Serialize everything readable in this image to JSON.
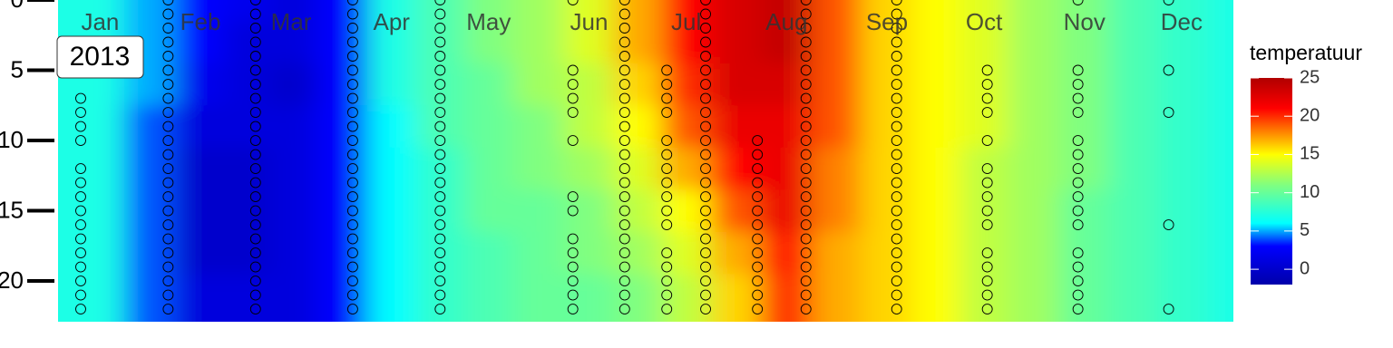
{
  "chart_data": {
    "type": "heatmap",
    "panel_label": "2013",
    "legend_title": "temperatuur",
    "xlim": [
      2,
      365
    ],
    "xticks": [
      {
        "value": 15,
        "label": "Jan"
      },
      {
        "value": 46,
        "label": "Feb"
      },
      {
        "value": 74,
        "label": "Mar"
      },
      {
        "value": 105,
        "label": "Apr"
      },
      {
        "value": 135,
        "label": "May"
      },
      {
        "value": 166,
        "label": "Jun"
      },
      {
        "value": 196,
        "label": "Jul"
      },
      {
        "value": 227,
        "label": "Aug"
      },
      {
        "value": 258,
        "label": "Sep"
      },
      {
        "value": 288,
        "label": "Oct"
      },
      {
        "value": 319,
        "label": "Nov"
      },
      {
        "value": 349,
        "label": "Dec"
      }
    ],
    "ylim": [
      0,
      22.9
    ],
    "y_reversed": true,
    "yticks": [
      0,
      5,
      10,
      15,
      20
    ],
    "clim": [
      -2,
      25
    ],
    "cticks": [
      0,
      5,
      10,
      15,
      20,
      25
    ],
    "color_stops": [
      {
        "value": -2,
        "color": "#0000aa"
      },
      {
        "value": 3,
        "color": "#0000ff"
      },
      {
        "value": 6,
        "color": "#00ffff"
      },
      {
        "value": 11,
        "color": "#80ff80"
      },
      {
        "value": 15,
        "color": "#ffff00"
      },
      {
        "value": 18,
        "color": "#ff8000"
      },
      {
        "value": 21,
        "color": "#ff0000"
      },
      {
        "value": 25,
        "color": "#b00000"
      }
    ],
    "x": [
      2,
      15,
      30,
      46,
      60,
      74,
      90,
      105,
      120,
      135,
      150,
      166,
      181,
      196,
      211,
      227,
      242,
      258,
      273,
      288,
      303,
      319,
      334,
      349,
      365
    ],
    "y": [
      0,
      3,
      6,
      9,
      12,
      15,
      18,
      21
    ],
    "z": [
      [
        7,
        7,
        7,
        7,
        7,
        7,
        7,
        7
      ],
      [
        7,
        7,
        7,
        7,
        7,
        7,
        7,
        7
      ],
      [
        5,
        5,
        5,
        4,
        4,
        4,
        4,
        4
      ],
      [
        3,
        3,
        2,
        1,
        0,
        0,
        0,
        1
      ],
      [
        2,
        1,
        1,
        1,
        0,
        0,
        0,
        1
      ],
      [
        1,
        1,
        0,
        1,
        1,
        1,
        1,
        1
      ],
      [
        3,
        3,
        3,
        3,
        3,
        3,
        3,
        3
      ],
      [
        7,
        7,
        7,
        6,
        6,
        6,
        6,
        6
      ],
      [
        9,
        9,
        9,
        9,
        8,
        8,
        8,
        8
      ],
      [
        11,
        11,
        10,
        10,
        10,
        10,
        9,
        9
      ],
      [
        12,
        12,
        12,
        11,
        11,
        10,
        10,
        10
      ],
      [
        14,
        14,
        13,
        13,
        12,
        11,
        11,
        10
      ],
      [
        17,
        17,
        16,
        15,
        14,
        13,
        12,
        11
      ],
      [
        21,
        21,
        20,
        19,
        17,
        15,
        14,
        13
      ],
      [
        23,
        23,
        23,
        22,
        21,
        19,
        17,
        16
      ],
      [
        24,
        24,
        23,
        22,
        22,
        22,
        21,
        20
      ],
      [
        19,
        19,
        19,
        19,
        18,
        18,
        17,
        17
      ],
      [
        16,
        16,
        16,
        16,
        16,
        16,
        16,
        16
      ],
      [
        15,
        15,
        15,
        15,
        15,
        15,
        15,
        15
      ],
      [
        14,
        14,
        14,
        14,
        13,
        13,
        13,
        13
      ],
      [
        12,
        12,
        12,
        12,
        12,
        12,
        12,
        12
      ],
      [
        11,
        11,
        11,
        11,
        11,
        10,
        10,
        10
      ],
      [
        9,
        9,
        9,
        9,
        9,
        9,
        9,
        9
      ],
      [
        8,
        8,
        8,
        8,
        8,
        8,
        8,
        8
      ],
      [
        7,
        7,
        7,
        7,
        7,
        7,
        7,
        7
      ]
    ],
    "samples": [
      {
        "day": 9,
        "depths": [
          7,
          8,
          9,
          10,
          12,
          13,
          14,
          15,
          16,
          17,
          18,
          19,
          20,
          21,
          22
        ]
      },
      {
        "day": 36,
        "depths": [
          0,
          1,
          2,
          3,
          4,
          5,
          6,
          7,
          8,
          9,
          10,
          11,
          12,
          13,
          14,
          15,
          16,
          17,
          18,
          19,
          20,
          21,
          22
        ]
      },
      {
        "day": 63,
        "depths": [
          0,
          1,
          2,
          3,
          4,
          5,
          6,
          7,
          8,
          9,
          10,
          11,
          12,
          13,
          14,
          15,
          16,
          17,
          18,
          19,
          20,
          21,
          22
        ]
      },
      {
        "day": 93,
        "depths": [
          0,
          1,
          2,
          3,
          4,
          5,
          6,
          7,
          8,
          9,
          10,
          11,
          12,
          13,
          14,
          15,
          16,
          17,
          18,
          19,
          20,
          21,
          22
        ]
      },
      {
        "day": 120,
        "depths": [
          0,
          1,
          2,
          3,
          4,
          5,
          6,
          7,
          8,
          9,
          10,
          11,
          12,
          13,
          14,
          15,
          16,
          17,
          18,
          19,
          20,
          21,
          22
        ]
      },
      {
        "day": 161,
        "depths": [
          0,
          5,
          6,
          7,
          8,
          10,
          14,
          15,
          17,
          18,
          19,
          20,
          21,
          22
        ]
      },
      {
        "day": 177,
        "depths": [
          0,
          1,
          2,
          3,
          4,
          5,
          6,
          7,
          8,
          9,
          10,
          11,
          12,
          13,
          14,
          15,
          16,
          17,
          18,
          19,
          20,
          21,
          22
        ]
      },
      {
        "day": 190,
        "depths": [
          5,
          6,
          7,
          8,
          10,
          11,
          12,
          13,
          14,
          15,
          16,
          18,
          19,
          20,
          21,
          22
        ]
      },
      {
        "day": 202,
        "depths": [
          0,
          1,
          2,
          3,
          4,
          5,
          6,
          7,
          8,
          9,
          10,
          11,
          12,
          13,
          14,
          15,
          16,
          17,
          18,
          19,
          20,
          21,
          22
        ]
      },
      {
        "day": 218,
        "depths": [
          10,
          11,
          12,
          13,
          14,
          15,
          16,
          17,
          18,
          19,
          20,
          21,
          22
        ]
      },
      {
        "day": 233,
        "depths": [
          0,
          1,
          2,
          3,
          4,
          5,
          6,
          7,
          8,
          9,
          10,
          11,
          12,
          13,
          14,
          15,
          16,
          17,
          18,
          19,
          20,
          21,
          22
        ]
      },
      {
        "day": 261,
        "depths": [
          0,
          1,
          2,
          3,
          4,
          5,
          6,
          7,
          8,
          9,
          10,
          11,
          12,
          13,
          14,
          15,
          16,
          17,
          18,
          19,
          20,
          21,
          22
        ]
      },
      {
        "day": 289,
        "depths": [
          5,
          6,
          7,
          8,
          10,
          12,
          13,
          14,
          15,
          16,
          18,
          19,
          20,
          21,
          22
        ]
      },
      {
        "day": 317,
        "depths": [
          0,
          5,
          6,
          7,
          8,
          10,
          11,
          12,
          13,
          14,
          15,
          16,
          18,
          19,
          20,
          21,
          22
        ]
      },
      {
        "day": 345,
        "depths": [
          0,
          5,
          8,
          16,
          22
        ]
      }
    ]
  }
}
